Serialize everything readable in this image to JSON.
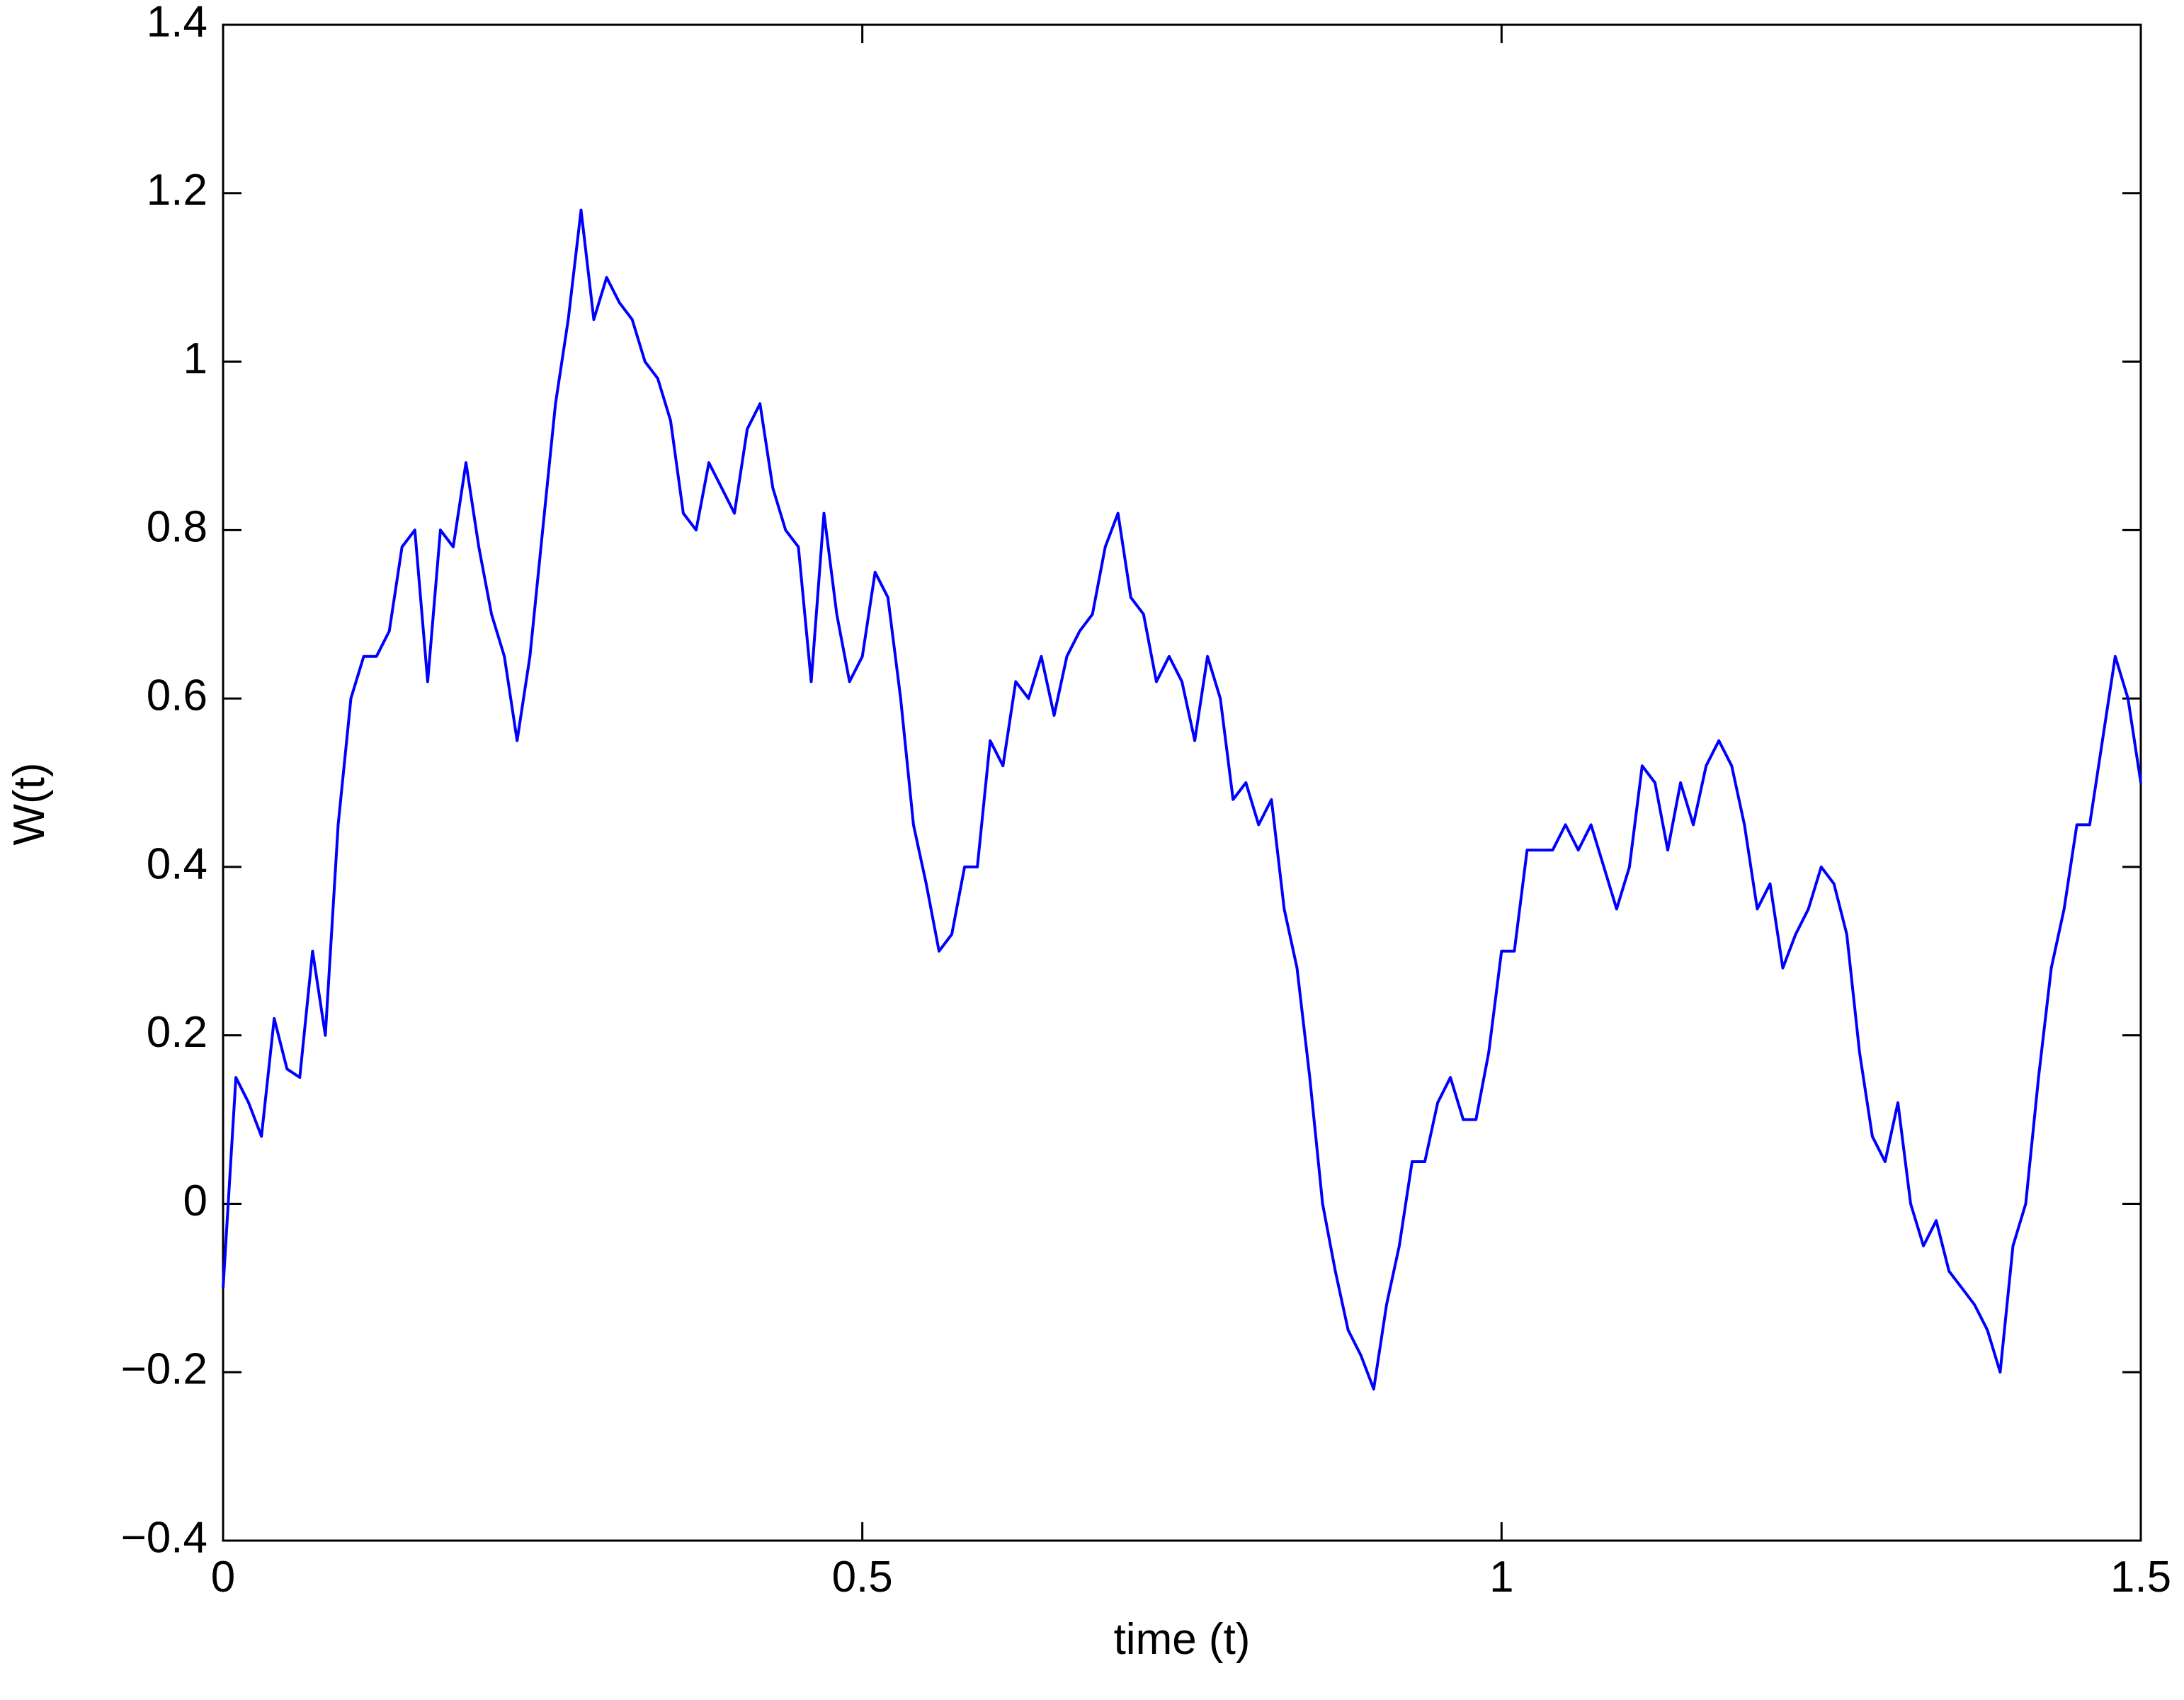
{
  "chart_data": {
    "type": "line",
    "xlabel": "time (t)",
    "ylabel": "W(t)",
    "x": [
      0,
      0.01,
      0.02,
      0.03,
      0.04,
      0.05,
      0.06,
      0.07,
      0.08,
      0.09,
      0.1,
      0.11,
      0.12,
      0.13,
      0.14,
      0.15,
      0.16,
      0.17,
      0.18,
      0.19,
      0.2,
      0.21,
      0.22,
      0.23,
      0.24,
      0.25,
      0.26,
      0.27,
      0.28,
      0.29,
      0.3,
      0.31,
      0.32,
      0.33,
      0.34,
      0.35,
      0.36,
      0.37,
      0.38,
      0.39,
      0.4,
      0.41,
      0.42,
      0.43,
      0.44,
      0.45,
      0.46,
      0.47,
      0.48,
      0.49,
      0.5,
      0.51,
      0.52,
      0.53,
      0.54,
      0.55,
      0.56,
      0.57,
      0.58,
      0.59,
      0.6,
      0.61,
      0.62,
      0.63,
      0.64,
      0.65,
      0.66,
      0.67,
      0.68,
      0.69,
      0.7,
      0.71,
      0.72,
      0.73,
      0.74,
      0.75,
      0.76,
      0.77,
      0.78,
      0.79,
      0.8,
      0.81,
      0.82,
      0.83,
      0.84,
      0.85,
      0.86,
      0.87,
      0.88,
      0.89,
      0.9,
      0.91,
      0.92,
      0.93,
      0.94,
      0.95,
      0.96,
      0.97,
      0.98,
      0.99,
      1,
      1.01,
      1.02,
      1.03,
      1.04,
      1.05,
      1.06,
      1.07,
      1.08,
      1.09,
      1.1,
      1.11,
      1.12,
      1.13,
      1.14,
      1.15,
      1.16,
      1.17,
      1.18,
      1.19,
      1.2,
      1.21,
      1.22,
      1.23,
      1.24,
      1.25,
      1.26,
      1.27,
      1.28,
      1.29,
      1.3,
      1.31,
      1.32,
      1.33,
      1.34,
      1.35,
      1.36,
      1.37,
      1.38,
      1.39,
      1.4,
      1.41,
      1.42,
      1.43,
      1.44,
      1.45,
      1.46,
      1.47,
      1.48,
      1.49,
      1.5
    ],
    "series": [
      {
        "color": "#0000ff",
        "values": [
          -0.1,
          0.15,
          0.12,
          0.08,
          0.22,
          0.16,
          0.15,
          0.3,
          0.2,
          0.45,
          0.6,
          0.65,
          0.65,
          0.68,
          0.78,
          0.8,
          0.62,
          0.8,
          0.78,
          0.88,
          0.78,
          0.7,
          0.65,
          0.55,
          0.65,
          0.8,
          0.95,
          1.05,
          1.18,
          1.05,
          1.1,
          1.07,
          1.05,
          1.0,
          0.98,
          0.93,
          0.82,
          0.8,
          0.88,
          0.85,
          0.82,
          0.92,
          0.95,
          0.85,
          0.8,
          0.78,
          0.62,
          0.82,
          0.7,
          0.62,
          0.65,
          0.75,
          0.72,
          0.6,
          0.45,
          0.38,
          0.3,
          0.32,
          0.4,
          0.4,
          0.55,
          0.52,
          0.62,
          0.6,
          0.65,
          0.58,
          0.65,
          0.68,
          0.7,
          0.78,
          0.82,
          0.72,
          0.7,
          0.62,
          0.65,
          0.62,
          0.55,
          0.65,
          0.6,
          0.48,
          0.5,
          0.45,
          0.48,
          0.35,
          0.28,
          0.15,
          0.0,
          -0.08,
          -0.15,
          -0.18,
          -0.22,
          -0.12,
          -0.05,
          0.05,
          0.05,
          0.12,
          0.15,
          0.1,
          0.1,
          0.18,
          0.3,
          0.3,
          0.42,
          0.42,
          0.42,
          0.45,
          0.42,
          0.45,
          0.4,
          0.35,
          0.4,
          0.52,
          0.5,
          0.42,
          0.5,
          0.45,
          0.52,
          0.55,
          0.52,
          0.45,
          0.35,
          0.38,
          0.28,
          0.32,
          0.35,
          0.4,
          0.38,
          0.32,
          0.18,
          0.08,
          0.05,
          0.12,
          0.0,
          -0.05,
          -0.02,
          -0.08,
          -0.1,
          -0.12,
          -0.15,
          -0.2,
          -0.05,
          0.0,
          0.15,
          0.28,
          0.35,
          0.45,
          0.45,
          0.55,
          0.65,
          0.6,
          0.5
        ]
      }
    ],
    "xlim": [
      0,
      1.5
    ],
    "xticks": [
      0,
      0.5,
      1,
      1.5
    ],
    "ylim": [
      -0.4,
      1.4
    ],
    "yticks": [
      {
        "value": -0.4,
        "label": "−0.4"
      },
      {
        "value": -0.2,
        "label": "−0.2"
      },
      0,
      0.2,
      0.4,
      0.6,
      0.8,
      1,
      1.2,
      1.4
    ],
    "grid": false
  }
}
